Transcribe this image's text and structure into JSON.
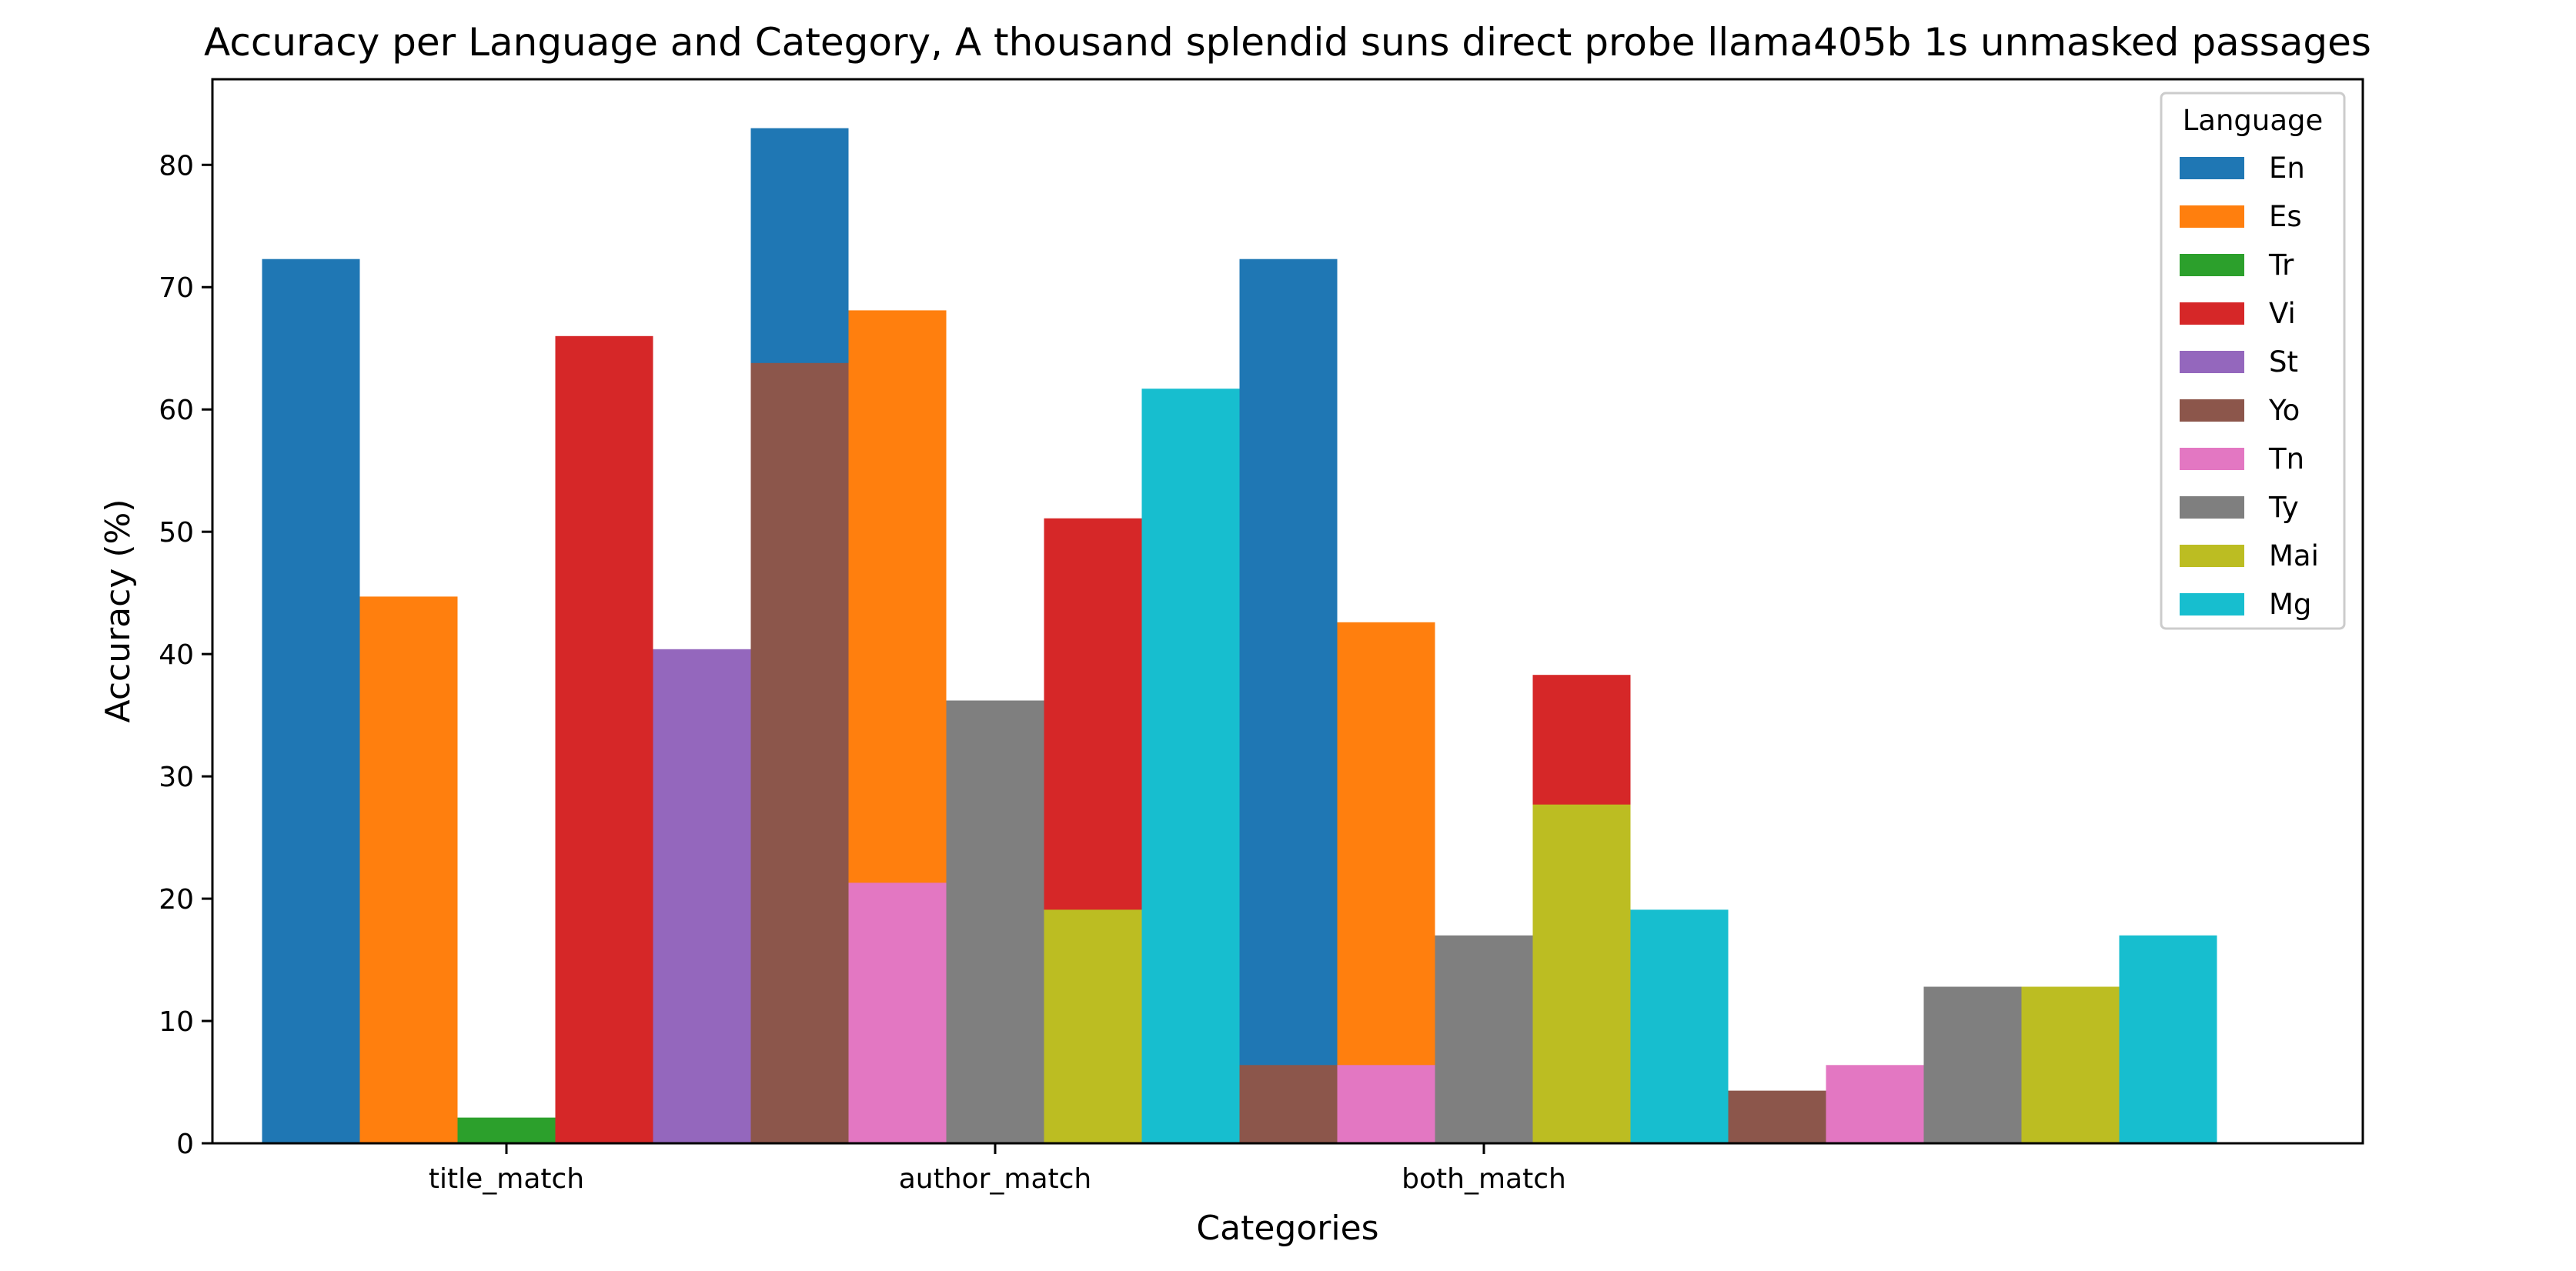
{
  "chart_data": {
    "type": "bar",
    "title": "Accuracy per Language and Category, A thousand splendid suns direct probe llama405b 1s unmasked passages",
    "xlabel": "Categories",
    "ylabel": "Accuracy (%)",
    "categories": [
      "title_match",
      "author_match",
      "both_match"
    ],
    "ylim": [
      0,
      87
    ],
    "yticks": [
      0,
      10,
      20,
      30,
      40,
      50,
      60,
      70,
      80
    ],
    "legend_title": "Language",
    "legend_position": "top-right",
    "grid": false,
    "series": [
      {
        "name": "En",
        "color": "#1f77b4",
        "values": [
          72.3,
          83.0,
          72.3
        ]
      },
      {
        "name": "Es",
        "color": "#ff7f0e",
        "values": [
          44.7,
          68.1,
          42.6
        ]
      },
      {
        "name": "Tr",
        "color": "#2ca02c",
        "values": [
          2.1,
          0,
          0
        ]
      },
      {
        "name": "Vi",
        "color": "#d62728",
        "values": [
          66.0,
          51.1,
          38.3
        ]
      },
      {
        "name": "St",
        "color": "#9467bd",
        "values": [
          40.4,
          0,
          0
        ]
      },
      {
        "name": "Yo",
        "color": "#8c564b",
        "values": [
          63.8,
          6.4,
          4.3
        ]
      },
      {
        "name": "Tn",
        "color": "#e377c2",
        "values": [
          21.3,
          6.4,
          6.4
        ]
      },
      {
        "name": "Ty",
        "color": "#7f7f7f",
        "values": [
          36.2,
          17.0,
          12.8
        ]
      },
      {
        "name": "Mai",
        "color": "#bcbd22",
        "values": [
          19.1,
          27.7,
          12.8
        ]
      },
      {
        "name": "Mg",
        "color": "#17becf",
        "values": [
          61.7,
          19.1,
          17.0
        ]
      }
    ]
  }
}
